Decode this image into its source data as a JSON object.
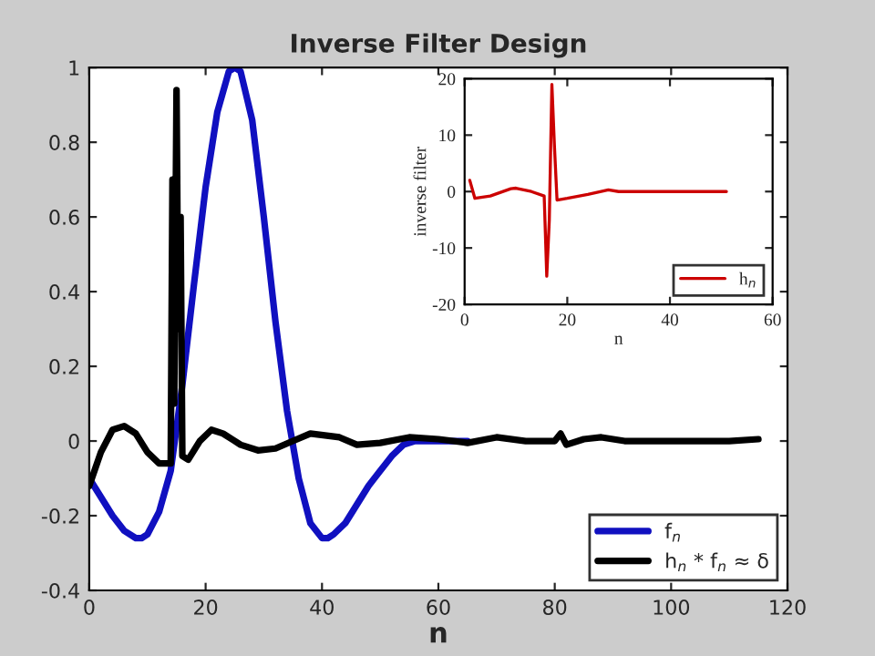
{
  "chart_data": [
    {
      "type": "line",
      "title": "Inverse Filter Design",
      "xlabel": "n",
      "xlim": [
        0,
        120
      ],
      "ylim": [
        -0.4,
        1
      ],
      "xticks": [
        0,
        20,
        40,
        60,
        80,
        100,
        120
      ],
      "yticks": [
        -0.4,
        -0.2,
        0,
        0.2,
        0.4,
        0.6,
        0.8,
        1
      ],
      "grid": false,
      "legend": "bottom right",
      "series": [
        {
          "name": "f$_{n}$",
          "color": "#1010c0",
          "x": [
            0,
            2,
            4,
            6,
            8,
            9,
            10,
            12,
            14,
            16,
            18,
            20,
            22,
            24,
            25,
            26,
            28,
            30,
            32,
            34,
            36,
            38,
            40,
            41,
            42,
            44,
            46,
            48,
            50,
            52,
            54,
            56,
            58,
            60,
            65
          ],
          "values": [
            -0.1,
            -0.15,
            -0.2,
            -0.24,
            -0.26,
            -0.26,
            -0.25,
            -0.19,
            -0.08,
            0.15,
            0.42,
            0.68,
            0.88,
            0.99,
            1.0,
            0.99,
            0.86,
            0.6,
            0.32,
            0.08,
            -0.1,
            -0.22,
            -0.26,
            -0.26,
            -0.25,
            -0.22,
            -0.17,
            -0.12,
            -0.08,
            -0.04,
            -0.01,
            0.0,
            0.0,
            0.0,
            0.0
          ]
        },
        {
          "name": "h$_{n}$ * f$_{n}$ ≈ δ",
          "color": "#000000",
          "x": [
            0,
            2,
            4,
            6,
            8,
            10,
            12,
            13,
            14,
            14.3,
            14.6,
            15,
            15.3,
            15.7,
            16,
            17,
            19,
            21,
            23,
            26,
            29,
            32,
            35,
            38,
            43,
            46,
            50,
            55,
            60,
            65,
            70,
            75,
            80,
            81,
            82,
            85,
            88,
            92,
            100,
            110,
            115
          ],
          "values": [
            -0.12,
            -0.03,
            0.03,
            0.04,
            0.02,
            -0.03,
            -0.06,
            -0.06,
            -0.06,
            0.7,
            0.1,
            0.94,
            0.3,
            0.6,
            -0.04,
            -0.05,
            0.0,
            0.03,
            0.02,
            -0.01,
            -0.025,
            -0.02,
            0.0,
            0.02,
            0.01,
            -0.01,
            -0.005,
            0.01,
            0.005,
            -0.005,
            0.01,
            0.0,
            0.0,
            0.02,
            -0.01,
            0.005,
            0.01,
            0.0,
            0.0,
            0.0,
            0.005
          ]
        }
      ]
    },
    {
      "type": "line",
      "xlabel": "n",
      "ylabel": "inverse filter",
      "xlim": [
        0,
        60
      ],
      "ylim": [
        -20,
        20
      ],
      "xticks": [
        0,
        20,
        40,
        60
      ],
      "yticks": [
        -20,
        -10,
        0,
        10,
        20
      ],
      "grid": false,
      "legend": "bottom right",
      "series": [
        {
          "name": "h$_{n}$",
          "color": "#cc0000",
          "x": [
            1,
            2,
            5,
            9,
            10,
            13,
            15.5,
            16,
            16.5,
            17,
            17.5,
            18,
            20,
            24,
            28,
            30,
            51
          ],
          "values": [
            2,
            -1.2,
            -0.8,
            0.5,
            0.6,
            0,
            -0.8,
            -15,
            -5,
            19,
            8,
            -1.5,
            -1.2,
            -0.5,
            0.3,
            0,
            0
          ]
        }
      ]
    }
  ]
}
